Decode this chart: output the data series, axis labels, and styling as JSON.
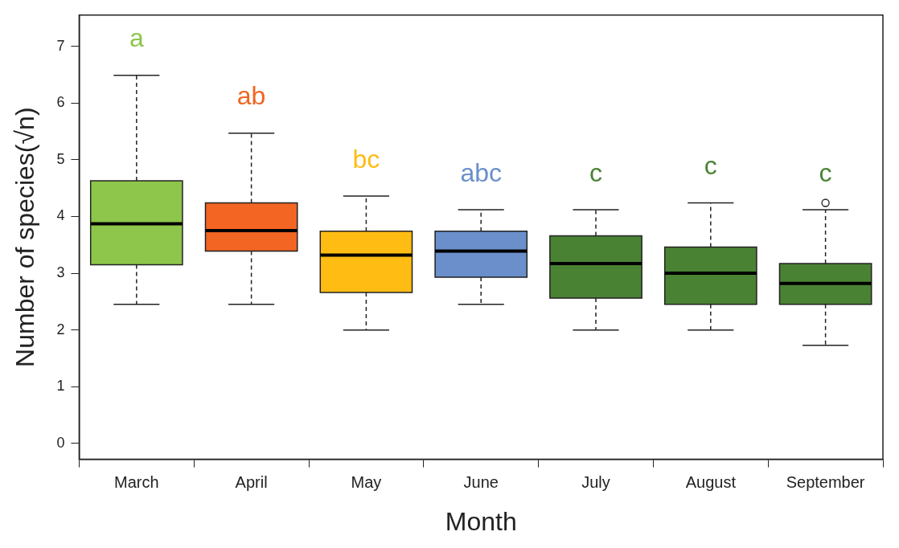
{
  "chart_data": {
    "type": "box",
    "xlabel": "Month",
    "ylabel": "Number of species(√n)",
    "categories": [
      "March",
      "April",
      "May",
      "June",
      "July",
      "August",
      "September"
    ],
    "colors": [
      "#8dc64a",
      "#f26522",
      "#ffbc13",
      "#6a8fcb",
      "#4a8234",
      "#4a8234",
      "#4a8234"
    ],
    "boxes": [
      {
        "low": 2.45,
        "q1": 3.15,
        "median": 3.87,
        "q3": 4.63,
        "high": 6.49
      },
      {
        "low": 2.45,
        "q1": 3.39,
        "median": 3.75,
        "q3": 4.24,
        "high": 5.47
      },
      {
        "low": 2.0,
        "q1": 2.66,
        "median": 3.32,
        "q3": 3.74,
        "high": 4.36
      },
      {
        "low": 2.45,
        "q1": 2.93,
        "median": 3.39,
        "q3": 3.74,
        "high": 4.12
      },
      {
        "low": 2.0,
        "q1": 2.56,
        "median": 3.17,
        "q3": 3.66,
        "high": 4.12
      },
      {
        "low": 2.0,
        "q1": 2.45,
        "median": 3.0,
        "q3": 3.46,
        "high": 4.24
      },
      {
        "low": 1.73,
        "q1": 2.45,
        "median": 2.82,
        "q3": 3.17,
        "high": 4.12,
        "outliers": [
          4.24
        ]
      }
    ],
    "ylim": [
      -0.28,
      7.55
    ],
    "yticks": [
      0,
      1,
      2,
      3,
      4,
      5,
      6,
      7
    ],
    "grid": false,
    "legend": false,
    "annotations": [
      "a",
      "ab",
      "bc",
      "abc",
      "c",
      "c",
      "c"
    ]
  }
}
